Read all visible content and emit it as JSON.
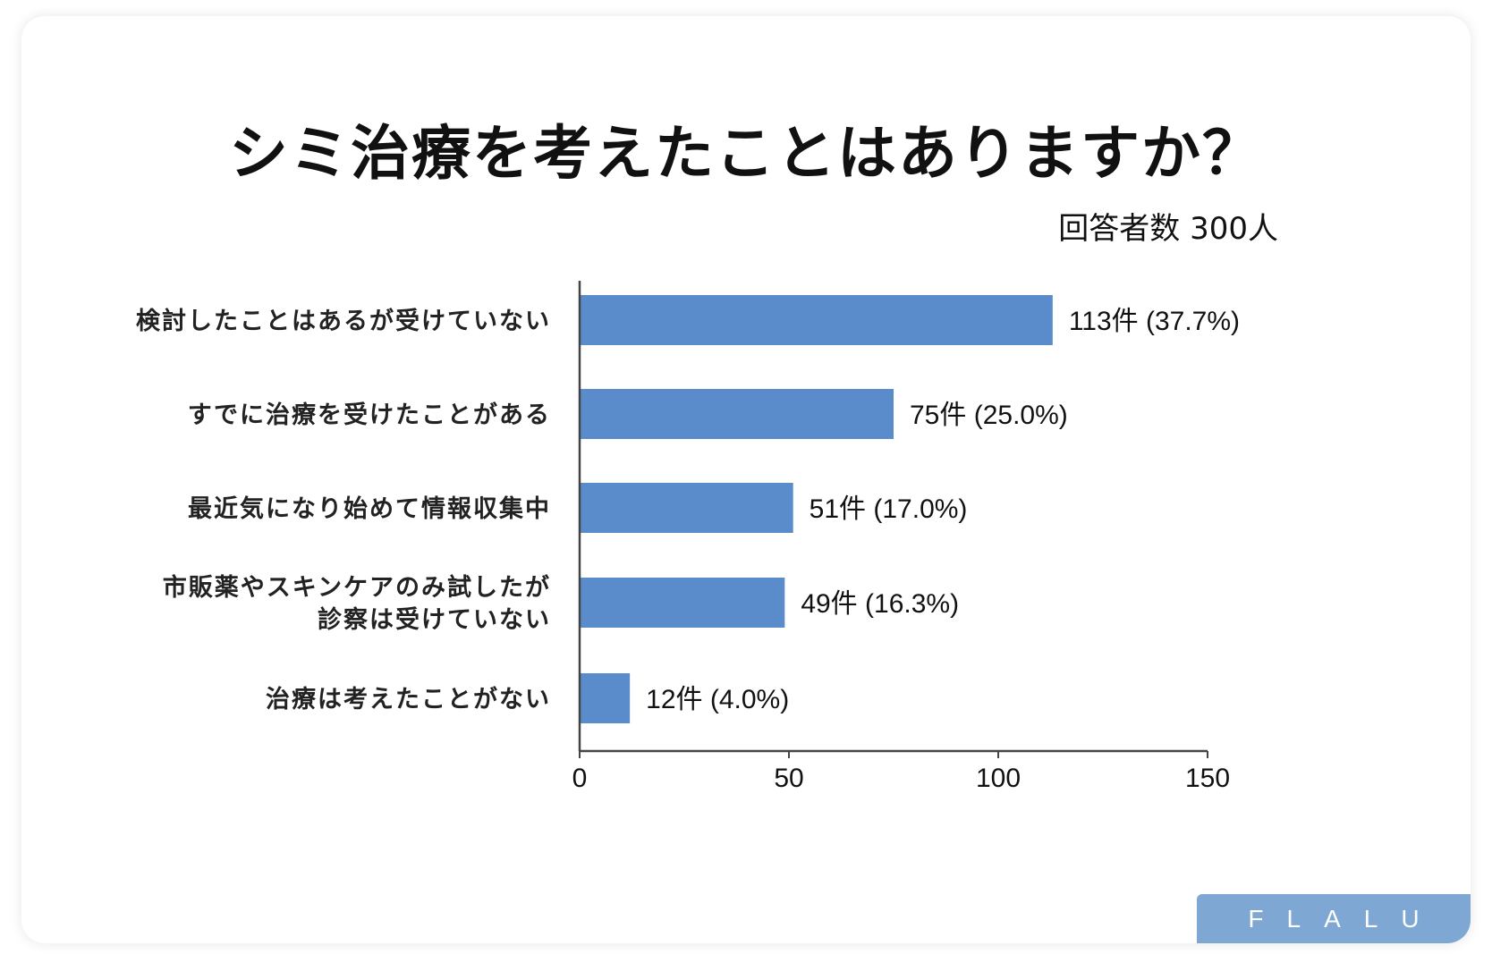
{
  "chart_data": {
    "type": "bar",
    "orientation": "horizontal",
    "title": "シミ治療を考えたことはありますか？",
    "subtitle": "回答者数 300人",
    "categories": [
      [
        "検討したことはあるが受けていない"
      ],
      [
        "すでに治療を受けたことがある"
      ],
      [
        "最近気になり始めて情報収集中"
      ],
      [
        "市販薬やスキンケアのみ試したが",
        "診察は受けていない"
      ],
      [
        "治療は考えたことがない"
      ]
    ],
    "values": [
      113,
      75,
      51,
      49,
      12
    ],
    "data_labels": [
      "113件 (37.7%)",
      "75件 (25.0%)",
      "51件 (17.0%)",
      "49件 (16.3%)",
      "12件 (4.0%)"
    ],
    "xlim": [
      0,
      150
    ],
    "xticks": [
      "0",
      "50",
      "100",
      "150"
    ],
    "bar_color": "#5a8ccc",
    "grid": false,
    "legend": "none"
  },
  "logo": {
    "text": "FLALU",
    "color": "#7ea7d3"
  }
}
